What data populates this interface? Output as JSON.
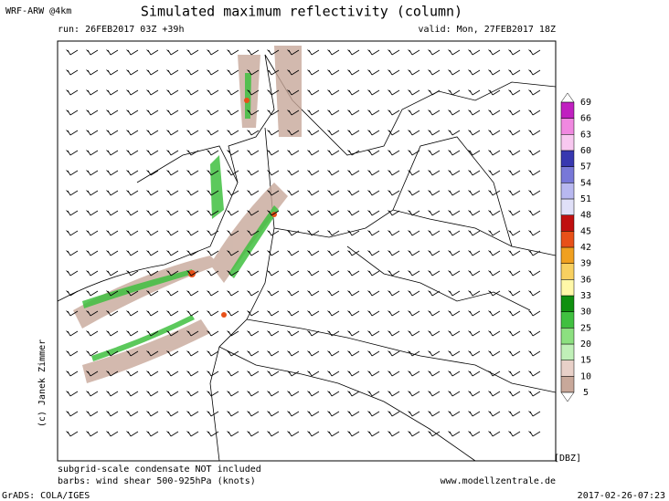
{
  "header": {
    "model": "WRF-ARW @4km",
    "title": "Simulated maximum reflectivity (column)",
    "run": "run: 26FEB2017 03Z +39h",
    "valid": "valid: Mon, 27FEB2017 18Z"
  },
  "copyright": "(c) Janek Zimmer",
  "colorbar": {
    "unit": "[DBZ]",
    "levels": [
      5,
      10,
      15,
      20,
      25,
      30,
      33,
      36,
      39,
      42,
      45,
      48,
      51,
      54,
      57,
      60,
      63,
      66,
      69
    ],
    "colors": [
      "#c8a89a",
      "#e8d0c8",
      "#c0f0b8",
      "#8ce080",
      "#40c040",
      "#109010",
      "#fff8a8",
      "#f8d060",
      "#f0a020",
      "#e85018",
      "#c01010",
      "#e0e0f8",
      "#b8b8f0",
      "#7878d8",
      "#3838b0",
      "#f8c8f0",
      "#f088e0",
      "#c020c0"
    ]
  },
  "footer": {
    "note1": "subgrid-scale condensate NOT included",
    "note2": "barbs: wind shear 500-925hPa (knots)",
    "website": "www.modellzentrale.de",
    "software": "GrADS: COLA/IGES",
    "timestamp": "2017-02-26-07:23"
  }
}
